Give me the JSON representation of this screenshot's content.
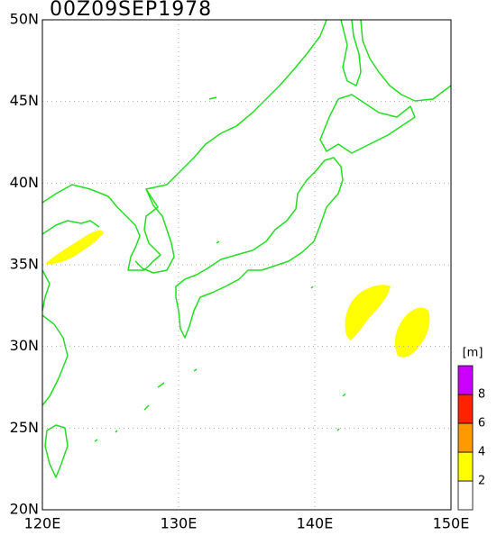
{
  "map": {
    "title": "00Z09SEP1978",
    "lat_ticks": [
      {
        "value": 20,
        "label": "20N"
      },
      {
        "value": 25,
        "label": "25N"
      },
      {
        "value": 30,
        "label": "30N"
      },
      {
        "value": 35,
        "label": "35N"
      },
      {
        "value": 40,
        "label": "40N"
      },
      {
        "value": 45,
        "label": "45N"
      },
      {
        "value": 50,
        "label": "50N"
      }
    ],
    "lon_ticks": [
      {
        "value": 120,
        "label": "120E"
      },
      {
        "value": 130,
        "label": "130E"
      },
      {
        "value": 140,
        "label": "140E"
      },
      {
        "value": 150,
        "label": "150E"
      }
    ],
    "lat_range": [
      20,
      50
    ],
    "lon_range": [
      120,
      150
    ],
    "legend": {
      "unit": "[m]",
      "levels": [
        2,
        4,
        6,
        8
      ],
      "colors": [
        "#ffffff",
        "#ffff00",
        "#ff9900",
        "#ff2200",
        "#cc00ff"
      ]
    }
  }
}
